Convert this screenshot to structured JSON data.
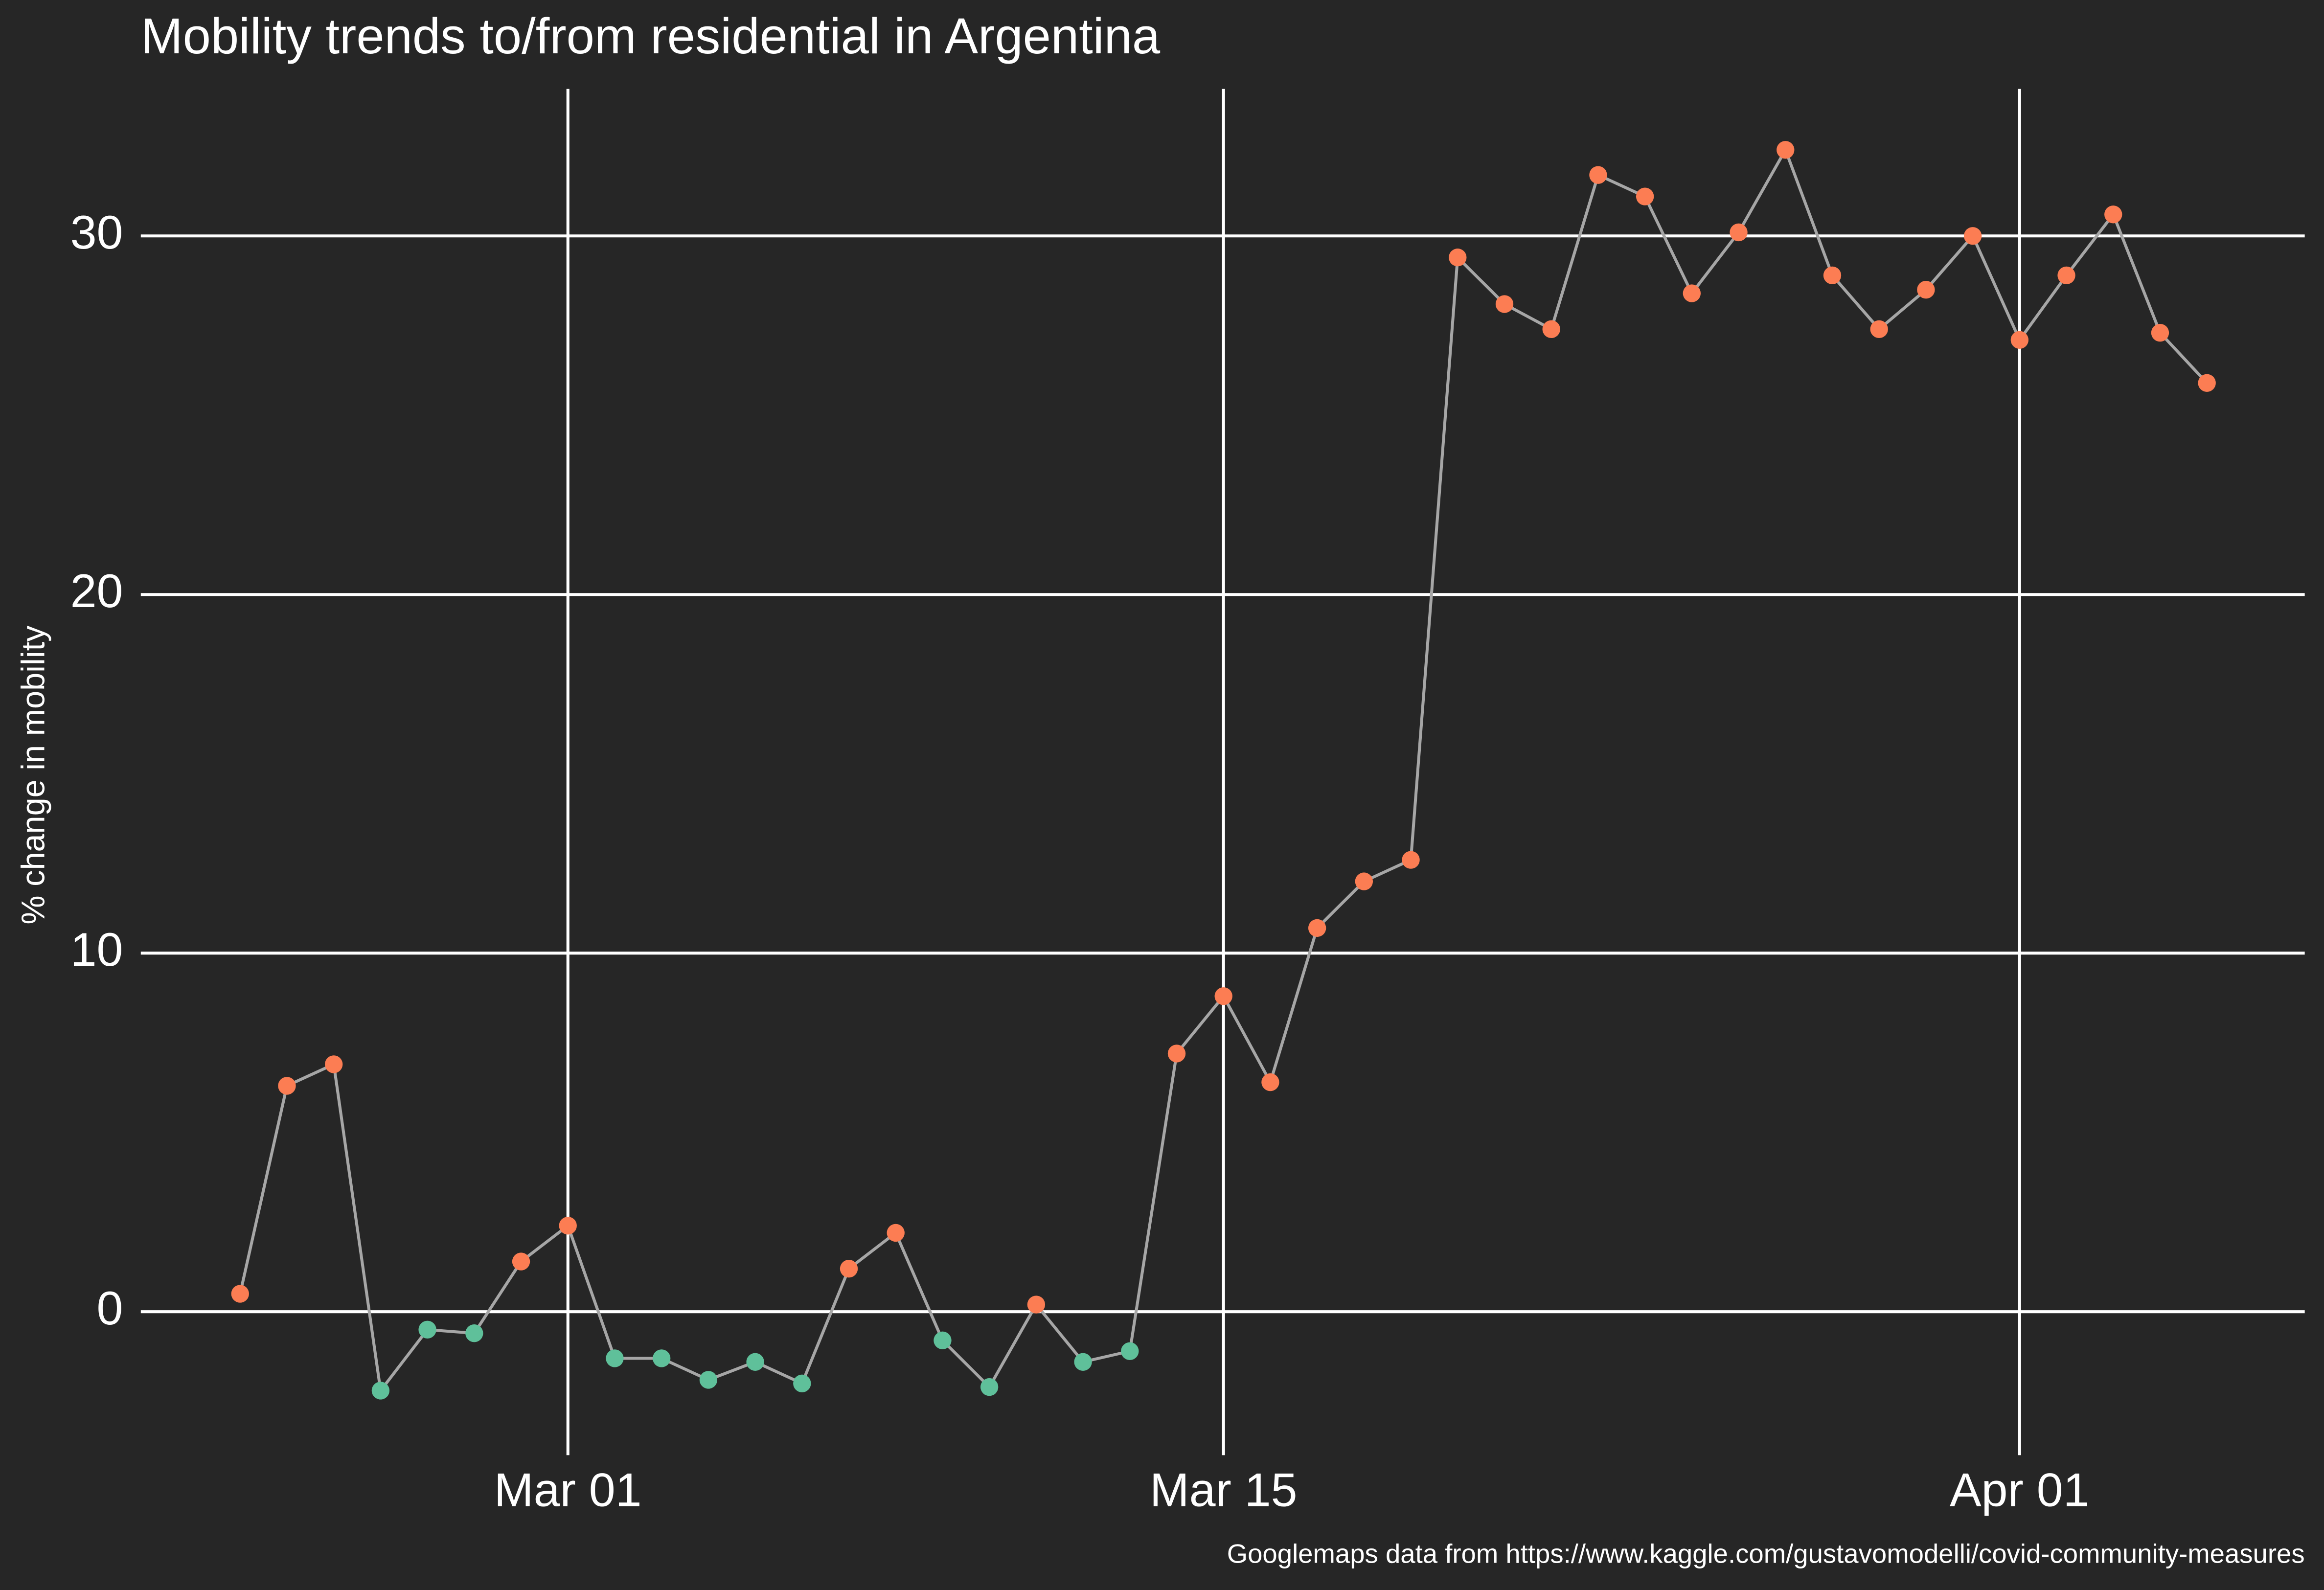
{
  "chart_data": {
    "type": "line",
    "title": "Mobility trends to/from residential in Argentina",
    "ylabel": "% change in mobility",
    "caption": "Googlemaps data from https://www.kaggle.com/gustavomodelli/covid-community-measures",
    "x": [
      "Feb 23",
      "Feb 24",
      "Feb 25",
      "Feb 26",
      "Feb 27",
      "Feb 28",
      "Feb 29",
      "Mar 01",
      "Mar 02",
      "Mar 03",
      "Mar 04",
      "Mar 05",
      "Mar 06",
      "Mar 07",
      "Mar 08",
      "Mar 09",
      "Mar 10",
      "Mar 11",
      "Mar 12",
      "Mar 13",
      "Mar 14",
      "Mar 15",
      "Mar 16",
      "Mar 17",
      "Mar 18",
      "Mar 19",
      "Mar 20",
      "Mar 21",
      "Mar 22",
      "Mar 23",
      "Mar 24",
      "Mar 25",
      "Mar 26",
      "Mar 27",
      "Mar 28",
      "Mar 29",
      "Mar 30",
      "Mar 31",
      "Apr 01",
      "Apr 02",
      "Apr 03",
      "Apr 04",
      "Apr 05"
    ],
    "values": [
      0.5,
      6.3,
      6.9,
      -2.2,
      -0.5,
      -0.6,
      1.4,
      2.4,
      -1.3,
      -1.3,
      -1.9,
      -1.4,
      -2.0,
      1.2,
      2.2,
      -0.8,
      -2.1,
      0.2,
      -1.4,
      -1.1,
      7.2,
      8.8,
      6.4,
      10.7,
      12.0,
      12.6,
      29.4,
      28.1,
      27.4,
      31.7,
      31.1,
      28.4,
      30.1,
      32.4,
      28.9,
      27.4,
      28.5,
      30.0,
      27.1,
      28.9,
      30.6,
      27.3,
      25.9
    ],
    "line_color": "#a6a6a6",
    "color_positive": "#fc7d53",
    "color_negative": "#5fc09a",
    "xticks": [
      "Mar 01",
      "Mar 15",
      "Apr 01"
    ],
    "ylim": [
      -4,
      34.1
    ],
    "yticks": [
      0,
      10,
      20,
      30
    ],
    "grid": true
  }
}
